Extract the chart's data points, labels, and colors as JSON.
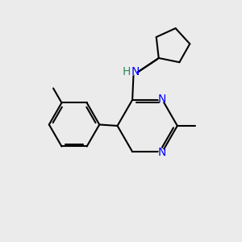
{
  "background_color": "#EBEBEB",
  "bond_color": "#000000",
  "bond_width": 1.5,
  "atom_colors": {
    "N": "#0000FF",
    "H": "#2E8B57"
  },
  "font_size_N": 10,
  "font_size_H": 10
}
